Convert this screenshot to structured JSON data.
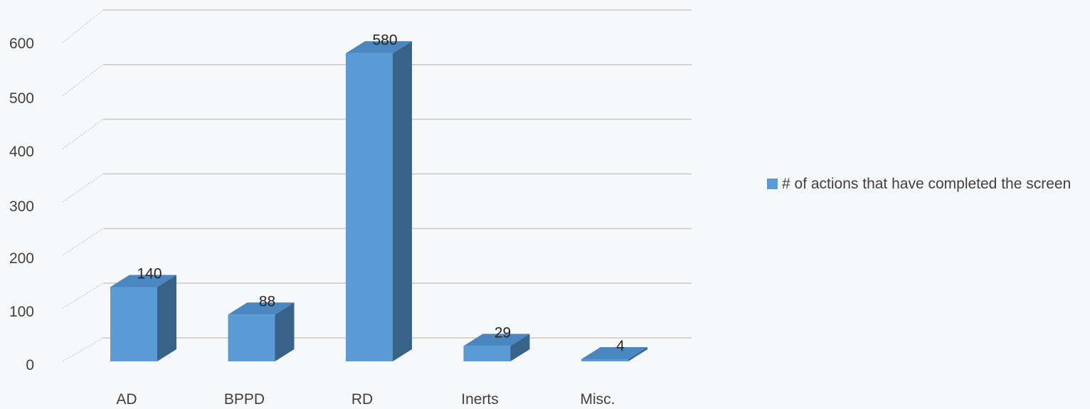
{
  "chart_data": {
    "type": "bar",
    "title": "",
    "xlabel": "",
    "ylabel": "",
    "categories": [
      "AD",
      "BPPD",
      "RD",
      "Inerts",
      "Misc."
    ],
    "series": [
      {
        "name": "# of actions that have completed the screen",
        "values": [
          140,
          88,
          580,
          29,
          4
        ]
      }
    ],
    "ylim": [
      0,
      600
    ],
    "yticks": [
      0,
      100,
      200,
      300,
      400,
      500,
      600
    ],
    "data_labels": [
      "140",
      "88",
      "580",
      "29",
      "4"
    ],
    "grid": true,
    "legend_position": "right",
    "bar_style": "3d-column",
    "colors": {
      "bar_front": "#5b9bd5",
      "bar_top": "#4a86bf",
      "bar_side": "#386288",
      "grid": "#c8c8c8",
      "background": "#f7f8f9"
    }
  }
}
